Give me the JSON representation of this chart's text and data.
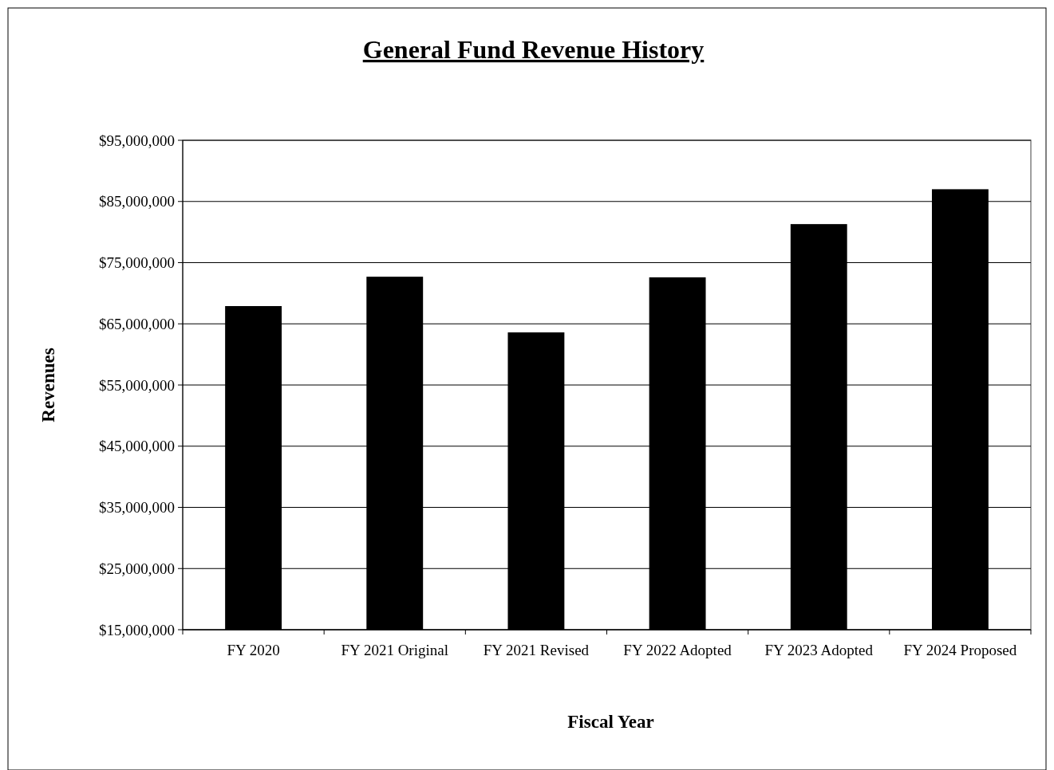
{
  "chart_data": {
    "type": "bar",
    "title": "General Fund Revenue History",
    "xlabel": "Fiscal Year",
    "ylabel": "Revenues",
    "categories": [
      "FY 2020",
      "FY 2021 Original",
      "FY 2021 Revised",
      "FY 2022 Adopted",
      "FY 2023 Adopted",
      "FY 2024 Proposed"
    ],
    "values": [
      67900000,
      72700000,
      63600000,
      72600000,
      81300000,
      87000000
    ],
    "color": "#000000",
    "ylim": [
      15000000,
      95000000
    ],
    "yticks": [
      {
        "value": 15000000,
        "label": "$15,000,000"
      },
      {
        "value": 25000000,
        "label": "$25,000,000"
      },
      {
        "value": 35000000,
        "label": "$35,000,000"
      },
      {
        "value": 45000000,
        "label": "$45,000,000"
      },
      {
        "value": 55000000,
        "label": "$55,000,000"
      },
      {
        "value": 65000000,
        "label": "$65,000,000"
      },
      {
        "value": 75000000,
        "label": "$75,000,000"
      },
      {
        "value": 85000000,
        "label": "$85,000,000"
      },
      {
        "value": 95000000,
        "label": "$95,000,000"
      }
    ],
    "grid": "y"
  }
}
